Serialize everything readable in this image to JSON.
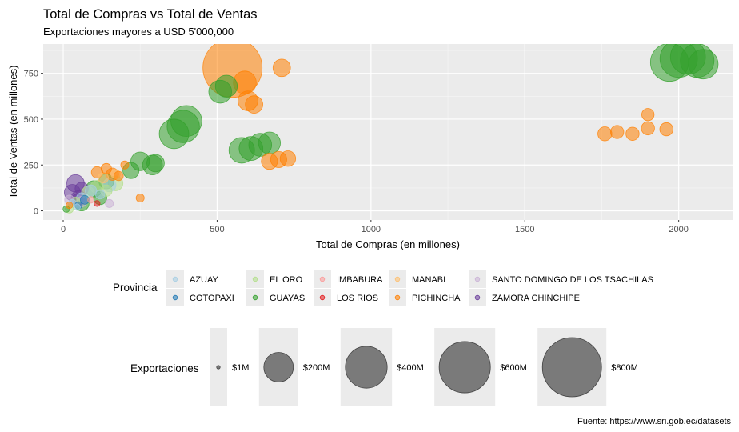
{
  "chart_data": {
    "type": "scatter",
    "subtype": "bubble",
    "title": "Total de Compras vs Total de Ventas",
    "subtitle": "Exportaciones mayores a USD 5'000,000",
    "xlabel": "Total de Compras (en millones)",
    "ylabel": "Total de Ventas (en millones)",
    "caption": "Fuente: https://www.sri.gob.ec/datasets",
    "xlim": [
      -65,
      2175
    ],
    "ylim": [
      -50,
      910
    ],
    "x_ticks": [
      0,
      500,
      1000,
      1500,
      2000
    ],
    "y_ticks": [
      0,
      250,
      500,
      750
    ],
    "grid": true,
    "background": "#ebebeb",
    "legend_position": "bottom",
    "color_legend": {
      "title": "Provincia",
      "entries": [
        {
          "name": "AZUAY",
          "color": "#a6cee3"
        },
        {
          "name": "COTOPAXI",
          "color": "#1f78b4"
        },
        {
          "name": "EL ORO",
          "color": "#b2df8a"
        },
        {
          "name": "GUAYAS",
          "color": "#33a02c"
        },
        {
          "name": "IMBABURA",
          "color": "#fb9a99"
        },
        {
          "name": "LOS RIOS",
          "color": "#e31a1c"
        },
        {
          "name": "MANABI",
          "color": "#fdbf6f"
        },
        {
          "name": "PICHINCHA",
          "color": "#ff7f00"
        },
        {
          "name": "SANTO DOMINGO DE LOS TSACHILAS",
          "color": "#cab2d6"
        },
        {
          "name": "ZAMORA CHINCHIPE",
          "color": "#6a3d9a"
        }
      ]
    },
    "size_legend": {
      "title": "Exportaciones",
      "entries": [
        {
          "label": "$1M",
          "value": 1
        },
        {
          "label": "$200M",
          "value": 200
        },
        {
          "label": "$400M",
          "value": 400
        },
        {
          "label": "$600M",
          "value": 600
        },
        {
          "label": "$800M",
          "value": 800
        }
      ]
    },
    "series": [
      {
        "name": "AZUAY",
        "points": [
          {
            "x": 30,
            "y": 40,
            "size": 15
          },
          {
            "x": 60,
            "y": 70,
            "size": 25
          },
          {
            "x": 90,
            "y": 110,
            "size": 30
          },
          {
            "x": 120,
            "y": 90,
            "size": 20
          },
          {
            "x": 150,
            "y": 140,
            "size": 40
          },
          {
            "x": 45,
            "y": 20,
            "size": 10
          }
        ]
      },
      {
        "name": "COTOPAXI",
        "points": [
          {
            "x": 50,
            "y": 30,
            "size": 12
          },
          {
            "x": 70,
            "y": 60,
            "size": 18
          }
        ]
      },
      {
        "name": "EL ORO",
        "points": [
          {
            "x": 40,
            "y": 50,
            "size": 20
          },
          {
            "x": 80,
            "y": 100,
            "size": 35
          },
          {
            "x": 110,
            "y": 130,
            "size": 40
          },
          {
            "x": 140,
            "y": 110,
            "size": 30
          },
          {
            "x": 170,
            "y": 150,
            "size": 50
          },
          {
            "x": 20,
            "y": 10,
            "size": 15
          }
        ]
      },
      {
        "name": "GUAYAS",
        "points": [
          {
            "x": 10,
            "y": 10,
            "size": 10
          },
          {
            "x": 60,
            "y": 40,
            "size": 50
          },
          {
            "x": 100,
            "y": 120,
            "size": 60
          },
          {
            "x": 120,
            "y": 70,
            "size": 40
          },
          {
            "x": 140,
            "y": 160,
            "size": 50
          },
          {
            "x": 220,
            "y": 220,
            "size": 60
          },
          {
            "x": 250,
            "y": 270,
            "size": 80
          },
          {
            "x": 290,
            "y": 250,
            "size": 90
          },
          {
            "x": 300,
            "y": 260,
            "size": 70
          },
          {
            "x": 360,
            "y": 420,
            "size": 200
          },
          {
            "x": 390,
            "y": 460,
            "size": 240
          },
          {
            "x": 400,
            "y": 490,
            "size": 220
          },
          {
            "x": 510,
            "y": 650,
            "size": 120
          },
          {
            "x": 530,
            "y": 680,
            "size": 110
          },
          {
            "x": 580,
            "y": 330,
            "size": 150
          },
          {
            "x": 610,
            "y": 340,
            "size": 130
          },
          {
            "x": 640,
            "y": 360,
            "size": 120
          },
          {
            "x": 670,
            "y": 370,
            "size": 110
          },
          {
            "x": 1970,
            "y": 810,
            "size": 330
          },
          {
            "x": 2000,
            "y": 830,
            "size": 320
          },
          {
            "x": 2030,
            "y": 840,
            "size": 280
          },
          {
            "x": 2060,
            "y": 820,
            "size": 260
          },
          {
            "x": 2080,
            "y": 800,
            "size": 200
          }
        ]
      },
      {
        "name": "IMBABURA",
        "points": [
          {
            "x": 90,
            "y": 60,
            "size": 10
          }
        ]
      },
      {
        "name": "LOS RIOS",
        "points": [
          {
            "x": 110,
            "y": 40,
            "size": 8
          }
        ]
      },
      {
        "name": "MANABI",
        "points": [
          {
            "x": 130,
            "y": 180,
            "size": 25
          },
          {
            "x": 170,
            "y": 200,
            "size": 20
          }
        ]
      },
      {
        "name": "PICHINCHA",
        "points": [
          {
            "x": 20,
            "y": 30,
            "size": 10
          },
          {
            "x": 110,
            "y": 210,
            "size": 30
          },
          {
            "x": 140,
            "y": 230,
            "size": 25
          },
          {
            "x": 160,
            "y": 200,
            "size": 35
          },
          {
            "x": 180,
            "y": 190,
            "size": 20
          },
          {
            "x": 200,
            "y": 250,
            "size": 15
          },
          {
            "x": 250,
            "y": 70,
            "size": 15
          },
          {
            "x": 550,
            "y": 780,
            "size": 800
          },
          {
            "x": 590,
            "y": 700,
            "size": 120
          },
          {
            "x": 600,
            "y": 600,
            "size": 90
          },
          {
            "x": 620,
            "y": 580,
            "size": 70
          },
          {
            "x": 710,
            "y": 780,
            "size": 70
          },
          {
            "x": 670,
            "y": 270,
            "size": 60
          },
          {
            "x": 700,
            "y": 280,
            "size": 60
          },
          {
            "x": 730,
            "y": 285,
            "size": 55
          },
          {
            "x": 1760,
            "y": 420,
            "size": 45
          },
          {
            "x": 1800,
            "y": 430,
            "size": 40
          },
          {
            "x": 1850,
            "y": 420,
            "size": 40
          },
          {
            "x": 1900,
            "y": 450,
            "size": 40
          },
          {
            "x": 1960,
            "y": 445,
            "size": 40
          },
          {
            "x": 1900,
            "y": 525,
            "size": 35
          }
        ]
      },
      {
        "name": "SANTO DOMINGO DE LOS TSACHILAS",
        "points": [
          {
            "x": 20,
            "y": 60,
            "size": 20
          },
          {
            "x": 60,
            "y": 50,
            "size": 25
          },
          {
            "x": 150,
            "y": 40,
            "size": 15
          }
        ]
      },
      {
        "name": "ZAMORA CHINCHIPE",
        "points": [
          {
            "x": 30,
            "y": 100,
            "size": 60
          },
          {
            "x": 40,
            "y": 150,
            "size": 70
          },
          {
            "x": 50,
            "y": 70,
            "size": 50
          },
          {
            "x": 60,
            "y": 120,
            "size": 40
          },
          {
            "x": 45,
            "y": 60,
            "size": 30
          }
        ]
      }
    ]
  }
}
